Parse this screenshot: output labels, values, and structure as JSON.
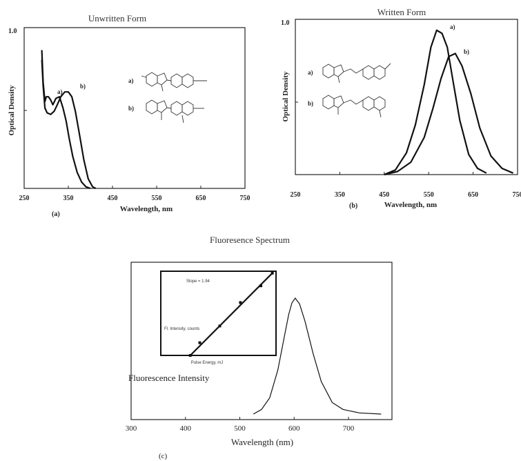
{
  "figure": {
    "caption_fluorescence": "Fluoresence Spectrum",
    "inset_slope": "Slope = 1.94",
    "inset_ylabel": "Fl. Intensity, counts",
    "inset_xlabel": "Pulse Energy, mJ"
  },
  "chart_data": [
    {
      "type": "line",
      "panel_label": "(a)",
      "title": "Unwritten Form",
      "xlabel": "Wavelength, nm",
      "ylabel": "Optical Density",
      "xlim": [
        250,
        750
      ],
      "ylim": [
        0,
        1.0
      ],
      "xticks": [
        "250",
        "350",
        "450",
        "550",
        "650",
        "750"
      ],
      "yticks": [
        "1.0"
      ],
      "grid": false,
      "series": [
        {
          "name": "a)",
          "x": [
            290,
            293,
            297,
            300,
            305,
            310,
            315,
            322,
            330,
            338,
            345,
            352,
            360,
            370,
            380,
            390,
            400
          ],
          "y": [
            0.86,
            0.66,
            0.54,
            0.57,
            0.57,
            0.55,
            0.52,
            0.56,
            0.57,
            0.5,
            0.42,
            0.31,
            0.2,
            0.1,
            0.04,
            0.01,
            0.0
          ]
        },
        {
          "name": "b)",
          "x": [
            290,
            293,
            297,
            302,
            310,
            318,
            325,
            333,
            342,
            350,
            358,
            366,
            375,
            385,
            395,
            405,
            412
          ],
          "y": [
            0.8,
            0.64,
            0.5,
            0.47,
            0.46,
            0.48,
            0.52,
            0.57,
            0.6,
            0.6,
            0.57,
            0.48,
            0.34,
            0.18,
            0.06,
            0.01,
            0.0
          ]
        }
      ]
    },
    {
      "type": "line",
      "panel_label": "(b)",
      "title": "Written Form",
      "xlabel": "Wavelength, nm",
      "ylabel": "Optical Density",
      "xlim": [
        250,
        750
      ],
      "ylim": [
        0,
        1.0
      ],
      "xticks": [
        "250",
        "350",
        "450",
        "550",
        "650",
        "750"
      ],
      "yticks": [
        "1.0"
      ],
      "grid": false,
      "series": [
        {
          "name": "a)",
          "x": [
            450,
            475,
            500,
            520,
            540,
            555,
            568,
            580,
            592,
            605,
            620,
            640,
            660,
            680
          ],
          "y": [
            0.0,
            0.03,
            0.14,
            0.32,
            0.58,
            0.82,
            0.93,
            0.91,
            0.82,
            0.6,
            0.35,
            0.13,
            0.04,
            0.01
          ]
        },
        {
          "name": "b)",
          "x": [
            450,
            480,
            510,
            540,
            560,
            578,
            595,
            610,
            625,
            645,
            665,
            690,
            715,
            740
          ],
          "y": [
            0.0,
            0.02,
            0.08,
            0.24,
            0.43,
            0.62,
            0.76,
            0.78,
            0.7,
            0.52,
            0.3,
            0.12,
            0.04,
            0.01
          ]
        }
      ]
    },
    {
      "type": "line",
      "panel_label": "(c)",
      "title": "",
      "xlabel": "Wavelength (nm)",
      "ylabel": "Fluorescence Intensity",
      "xlim": [
        300,
        780
      ],
      "xticks": [
        "300",
        "400",
        "500",
        "600",
        "700"
      ],
      "grid": false,
      "series": [
        {
          "name": "",
          "x": [
            525,
            540,
            555,
            570,
            580,
            590,
            596,
            602,
            610,
            620,
            635,
            650,
            670,
            690,
            720,
            760
          ],
          "y": [
            0.0,
            0.04,
            0.14,
            0.38,
            0.62,
            0.86,
            0.96,
            1.0,
            0.95,
            0.8,
            0.52,
            0.28,
            0.1,
            0.04,
            0.01,
            0.0
          ]
        }
      ],
      "inset": {
        "type": "scatter",
        "log_scale": true,
        "series": [
          {
            "name": "",
            "x": [
              0.8,
              1.0,
              1.6,
              2.6,
              4.2,
              5.5
            ],
            "y": [
              10,
              20,
              50,
              180,
              450,
              900
            ]
          }
        ]
      }
    }
  ]
}
